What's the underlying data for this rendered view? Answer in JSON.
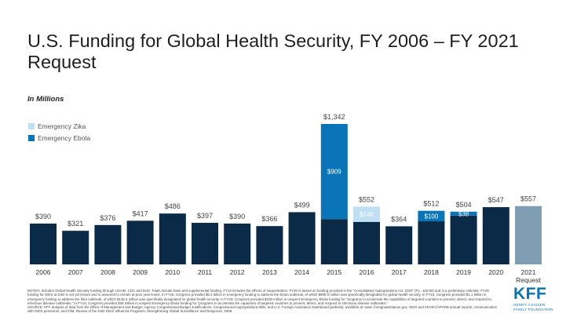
{
  "title": "U.S. Funding for Global Health Security, FY 2006 – FY 2021 Request",
  "subtitle": "In Millions",
  "legend": [
    {
      "name": "Emergency Zika",
      "color": "#bfe0f4"
    },
    {
      "name": "Emergency Ebola",
      "color": "#0a74b8"
    }
  ],
  "colors": {
    "base": "#0b2a48",
    "request": "#7f9db3",
    "zika": "#bfe0f4",
    "ebola": "#0a74b8"
  },
  "chart_data": {
    "type": "bar",
    "categories": [
      "2006",
      "2007",
      "2008",
      "2009",
      "2010",
      "2011",
      "2012",
      "2013",
      "2014",
      "2015",
      "2016",
      "2017",
      "2018",
      "2019",
      "2020",
      "2021"
    ],
    "category_sublabels": {
      "2021": "Request"
    },
    "totals": [
      390,
      321,
      376,
      417,
      486,
      397,
      390,
      366,
      499,
      1342,
      552,
      364,
      512,
      504,
      547,
      557
    ],
    "total_labels": [
      "$390",
      "$321",
      "$376",
      "$417",
      "$486",
      "$397",
      "$390",
      "$366",
      "$499",
      "$1,342",
      "$552",
      "$364",
      "$512",
      "$504",
      "$547",
      "$557"
    ],
    "emergency": [
      {
        "category": "2015",
        "value": 909,
        "label": "$909",
        "type": "ebola"
      },
      {
        "category": "2016",
        "value": 146,
        "label": "$146",
        "type": "zika"
      },
      {
        "category": "2018",
        "value": 100,
        "label": "$100",
        "type": "ebola"
      },
      {
        "category": "2019",
        "value": 38,
        "label": "$38",
        "type": "ebola"
      }
    ],
    "request_category": "2021",
    "ylim": [
      0,
      1342
    ]
  },
  "notes": [
    "NOTES: Includes Global Health Security funding through USAID, CDC and DoD. Totals include base and supplemental funding. FY13 includes the effects of sequestration. FY20 is based on funding provided in the “Consolidated Appropriations Act, 2020” (P.L. 116-94) and is a preliminary estimate. FY20 funding for GEIS at DoD is not yet known and is assumed to remain at prior year levels. In FY15, Congress provided $5.4 billion in emergency funding to address the Ebola outbreak, of which $909.0 million was specifically designated for global health security. In FY16, Congress provided $1.1 billion in emergency funding to address the Zika outbreak, of which $145.5 million was specifically designated for global health security. In FY18, Congress provided $100 million in unspent Emergency Ebola funding for “programs to accelerate the capabilities of targeted countries to prevent, detect, and respond to infectious disease outbreaks.” In FY19, Congress provided $38 million in unspent Emergency Ebola funding for “programs to accelerate the capacities of targeted countries to prevent, detect, and respond to infectious disease outbreaks.”",
    "SOURCE: KFF analysis of data from the Office of Management and Budget, Agency Congressional Budget Justifications, Congressional Appropriations Bills, and U.S. Foreign Assistance Dashboard [website], available at: www. foreignassistance.gov, GEIS and AFHSC/APHSB annual reports, communication with GEIS personnel, and IOM, Review of the DoD-GEIS Influenza Programs: Strengthening Global Surveillance and Response, 2008."
  ],
  "logo": {
    "mark": "KFF",
    "line1": "HENRY J KAISER",
    "line2": "FAMILY FOUNDATION"
  }
}
